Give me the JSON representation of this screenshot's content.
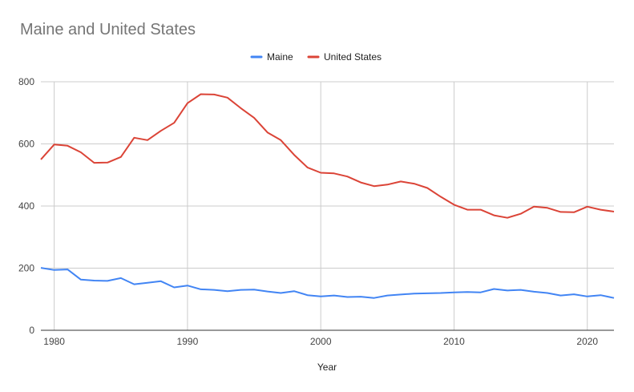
{
  "chart_data": {
    "type": "line",
    "title": "Maine and United States",
    "xlabel": "Year",
    "ylabel": "",
    "xlim": [
      1979,
      2022
    ],
    "ylim": [
      0,
      800
    ],
    "grid": true,
    "legend_position": "top",
    "x_ticks": [
      "1980",
      "1990",
      "2000",
      "2010",
      "2020"
    ],
    "y_ticks": [
      "0",
      "200",
      "400",
      "600",
      "800"
    ],
    "x": [
      1979,
      1980,
      1981,
      1982,
      1983,
      1984,
      1985,
      1986,
      1987,
      1988,
      1989,
      1990,
      1991,
      1992,
      1993,
      1994,
      1995,
      1996,
      1997,
      1998,
      1999,
      2000,
      2001,
      2002,
      2003,
      2004,
      2005,
      2006,
      2007,
      2008,
      2009,
      2010,
      2011,
      2012,
      2013,
      2014,
      2015,
      2016,
      2017,
      2018,
      2019,
      2020,
      2021,
      2022
    ],
    "series": [
      {
        "name": "Maine",
        "color": "#4285f4",
        "values": [
          201,
          194,
          196,
          163,
          160,
          159,
          168,
          148,
          153,
          158,
          138,
          144,
          132,
          130,
          126,
          130,
          131,
          125,
          120,
          126,
          113,
          109,
          112,
          107,
          108,
          104,
          112,
          115,
          118,
          119,
          120,
          122,
          123,
          122,
          133,
          128,
          130,
          124,
          120,
          112,
          116,
          109,
          113,
          104
        ]
      },
      {
        "name": "United States",
        "color": "#db4437",
        "values": [
          550,
          598,
          594,
          573,
          539,
          540,
          558,
          620,
          612,
          642,
          668,
          731,
          760,
          759,
          749,
          715,
          684,
          637,
          612,
          565,
          524,
          507,
          505,
          495,
          476,
          464,
          469,
          479,
          472,
          458,
          430,
          404,
          388,
          388,
          370,
          362,
          375,
          398,
          394,
          381,
          380,
          398,
          388,
          382
        ]
      }
    ]
  }
}
